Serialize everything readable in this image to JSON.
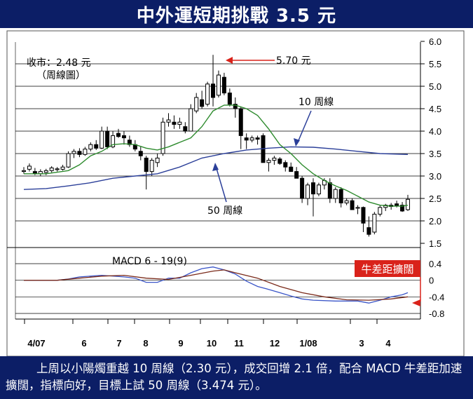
{
  "header": {
    "title": "中外運短期挑戰 3.5 元"
  },
  "chart_data": [
    {
      "type": "candlestick",
      "title": "",
      "annotations": {
        "close": "收市：2.48 元",
        "chart_kind": "（周線圖）",
        "peak": "5.70 元",
        "ma10": "10 周線",
        "ma50": "50 周線"
      },
      "x_ticks": [
        "4/07",
        "6",
        "7",
        "8",
        "9",
        "10",
        "11",
        "12",
        "1/08",
        "3",
        "4"
      ],
      "y_ticks": [
        "6.0",
        "5.5",
        "5.0",
        "4.5",
        "4.0",
        "3.5",
        "3.0",
        "2.5",
        "2.0",
        "1.5"
      ],
      "ylim": [
        1.5,
        6.0
      ],
      "ohlc": [
        [
          3.1,
          3.2,
          3.05,
          3.12
        ],
        [
          3.15,
          3.28,
          3.1,
          3.22
        ],
        [
          3.1,
          3.18,
          3.02,
          3.06
        ],
        [
          3.05,
          3.15,
          3.0,
          3.1
        ],
        [
          3.08,
          3.16,
          3.02,
          3.12
        ],
        [
          3.12,
          3.22,
          3.08,
          3.18
        ],
        [
          3.15,
          3.2,
          3.1,
          3.16
        ],
        [
          3.15,
          3.25,
          3.12,
          3.2
        ],
        [
          3.2,
          3.55,
          3.18,
          3.5
        ],
        [
          3.5,
          3.6,
          3.4,
          3.55
        ],
        [
          3.55,
          3.62,
          3.42,
          3.48
        ],
        [
          3.48,
          3.65,
          3.45,
          3.6
        ],
        [
          3.6,
          3.75,
          3.55,
          3.7
        ],
        [
          3.7,
          3.8,
          3.58,
          3.62
        ],
        [
          3.62,
          4.1,
          3.6,
          4.0
        ],
        [
          4.0,
          4.1,
          3.6,
          3.65
        ],
        [
          3.65,
          4.0,
          3.62,
          3.9
        ],
        [
          3.95,
          4.05,
          3.85,
          3.88
        ],
        [
          3.9,
          4.0,
          3.7,
          3.85
        ],
        [
          3.8,
          3.9,
          3.65,
          3.7
        ],
        [
          3.7,
          3.8,
          3.55,
          3.6
        ],
        [
          3.55,
          3.65,
          3.35,
          3.45
        ],
        [
          3.4,
          3.45,
          2.7,
          3.1
        ],
        [
          3.1,
          3.4,
          3.0,
          3.35
        ],
        [
          3.3,
          3.5,
          3.2,
          3.4
        ],
        [
          3.5,
          4.3,
          3.45,
          4.2
        ],
        [
          4.2,
          4.4,
          4.1,
          4.25
        ],
        [
          4.2,
          4.35,
          4.05,
          4.15
        ],
        [
          4.15,
          4.3,
          4.05,
          4.2
        ],
        [
          4.1,
          4.2,
          3.95,
          4.0
        ],
        [
          4.0,
          4.6,
          4.0,
          4.5
        ],
        [
          4.45,
          4.85,
          4.4,
          4.75
        ],
        [
          4.7,
          4.9,
          4.5,
          4.55
        ],
        [
          4.6,
          5.1,
          4.55,
          5.05
        ],
        [
          5.05,
          5.7,
          4.55,
          4.75
        ],
        [
          4.8,
          5.35,
          4.75,
          5.25
        ],
        [
          5.2,
          5.3,
          4.8,
          4.85
        ],
        [
          4.85,
          4.95,
          4.55,
          4.6
        ],
        [
          4.6,
          4.75,
          4.3,
          4.5
        ],
        [
          4.5,
          4.55,
          3.6,
          3.9
        ],
        [
          3.85,
          3.95,
          3.6,
          3.8
        ],
        [
          3.8,
          3.9,
          3.75,
          3.85
        ],
        [
          3.85,
          3.9,
          3.7,
          3.82
        ],
        [
          3.9,
          3.95,
          3.3,
          3.3
        ],
        [
          3.3,
          3.4,
          3.1,
          3.35
        ],
        [
          3.35,
          3.45,
          3.25,
          3.4
        ],
        [
          3.38,
          3.42,
          3.25,
          3.28
        ],
        [
          3.3,
          3.35,
          3.1,
          3.2
        ],
        [
          3.2,
          3.3,
          3.1,
          3.1
        ],
        [
          3.1,
          3.2,
          2.95,
          2.95
        ],
        [
          2.95,
          3.0,
          2.4,
          2.5
        ],
        [
          2.5,
          2.85,
          2.35,
          2.8
        ],
        [
          2.85,
          2.95,
          2.1,
          2.6
        ],
        [
          2.6,
          2.85,
          2.55,
          2.8
        ],
        [
          2.8,
          2.95,
          2.7,
          2.9
        ],
        [
          2.85,
          2.95,
          2.4,
          2.5
        ],
        [
          2.5,
          2.75,
          2.4,
          2.7
        ],
        [
          2.7,
          2.75,
          2.3,
          2.4
        ],
        [
          2.4,
          2.5,
          2.35,
          2.45
        ],
        [
          2.45,
          2.5,
          2.25,
          2.25
        ],
        [
          2.3,
          2.35,
          2.15,
          2.3
        ],
        [
          2.3,
          2.32,
          1.75,
          1.95
        ],
        [
          1.85,
          2.1,
          1.65,
          1.7
        ],
        [
          1.75,
          2.2,
          1.7,
          2.15
        ],
        [
          2.15,
          2.35,
          2.1,
          2.3
        ],
        [
          2.3,
          2.38,
          2.22,
          2.35
        ],
        [
          2.35,
          2.4,
          2.25,
          2.32
        ],
        [
          2.38,
          2.45,
          2.3,
          2.33
        ],
        [
          2.35,
          2.42,
          2.2,
          2.22
        ],
        [
          2.25,
          2.58,
          2.22,
          2.48
        ]
      ],
      "ma10": [
        [
          0,
          3.05
        ],
        [
          4,
          3.05
        ],
        [
          8,
          3.12
        ],
        [
          10,
          3.25
        ],
        [
          12,
          3.45
        ],
        [
          14,
          3.55
        ],
        [
          16,
          3.7
        ],
        [
          18,
          3.72
        ],
        [
          20,
          3.7
        ],
        [
          22,
          3.62
        ],
        [
          24,
          3.58
        ],
        [
          26,
          3.65
        ],
        [
          28,
          3.75
        ],
        [
          30,
          3.85
        ],
        [
          32,
          4.1
        ],
        [
          34,
          4.45
        ],
        [
          36,
          4.58
        ],
        [
          38,
          4.58
        ],
        [
          40,
          4.5
        ],
        [
          42,
          4.35
        ],
        [
          44,
          4.05
        ],
        [
          46,
          3.7
        ],
        [
          48,
          3.5
        ],
        [
          50,
          3.25
        ],
        [
          52,
          3.05
        ],
        [
          54,
          2.9
        ],
        [
          56,
          2.78
        ],
        [
          58,
          2.68
        ],
        [
          60,
          2.55
        ],
        [
          62,
          2.42
        ],
        [
          64,
          2.35
        ],
        [
          66,
          2.33
        ],
        [
          68,
          2.33
        ],
        [
          69,
          2.35
        ]
      ],
      "ma50": [
        [
          0,
          2.7
        ],
        [
          4,
          2.72
        ],
        [
          8,
          2.78
        ],
        [
          12,
          2.85
        ],
        [
          16,
          2.95
        ],
        [
          20,
          3.0
        ],
        [
          24,
          3.05
        ],
        [
          28,
          3.2
        ],
        [
          32,
          3.4
        ],
        [
          36,
          3.5
        ],
        [
          40,
          3.58
        ],
        [
          44,
          3.62
        ],
        [
          48,
          3.65
        ],
        [
          52,
          3.64
        ],
        [
          56,
          3.6
        ],
        [
          60,
          3.55
        ],
        [
          64,
          3.5
        ],
        [
          69,
          3.48
        ]
      ]
    },
    {
      "type": "line",
      "title": "MACD 6 - 19(9)",
      "y_ticks": [
        "0.4",
        "0",
        "-0.4",
        "-0.8"
      ],
      "ylim": [
        -0.8,
        0.4
      ],
      "annotation": "牛差距擴闊",
      "series": [
        {
          "color": "#3a55c8",
          "points": [
            [
              0,
              0.0
            ],
            [
              6,
              0.0
            ],
            [
              8,
              0.03
            ],
            [
              10,
              0.08
            ],
            [
              14,
              0.12
            ],
            [
              18,
              0.08
            ],
            [
              20,
              0.05
            ],
            [
              22,
              -0.05
            ],
            [
              24,
              -0.05
            ],
            [
              26,
              0.05
            ],
            [
              28,
              0.05
            ],
            [
              30,
              0.18
            ],
            [
              32,
              0.28
            ],
            [
              34,
              0.32
            ],
            [
              36,
              0.25
            ],
            [
              38,
              0.15
            ],
            [
              40,
              -0.02
            ],
            [
              42,
              -0.15
            ],
            [
              44,
              -0.22
            ],
            [
              46,
              -0.3
            ],
            [
              48,
              -0.38
            ],
            [
              50,
              -0.45
            ],
            [
              52,
              -0.48
            ],
            [
              56,
              -0.5
            ],
            [
              60,
              -0.5
            ],
            [
              62,
              -0.55
            ],
            [
              64,
              -0.48
            ],
            [
              66,
              -0.4
            ],
            [
              68,
              -0.35
            ],
            [
              69,
              -0.3
            ]
          ]
        },
        {
          "color": "#7a2a1a",
          "points": [
            [
              0,
              0.0
            ],
            [
              6,
              0.0
            ],
            [
              10,
              0.05
            ],
            [
              14,
              0.1
            ],
            [
              18,
              0.12
            ],
            [
              22,
              0.05
            ],
            [
              26,
              0.02
            ],
            [
              30,
              0.12
            ],
            [
              34,
              0.22
            ],
            [
              36,
              0.25
            ],
            [
              38,
              0.18
            ],
            [
              42,
              0.05
            ],
            [
              46,
              -0.15
            ],
            [
              50,
              -0.3
            ],
            [
              54,
              -0.4
            ],
            [
              58,
              -0.47
            ],
            [
              62,
              -0.48
            ],
            [
              66,
              -0.45
            ],
            [
              69,
              -0.4
            ]
          ]
        }
      ]
    }
  ],
  "footer": {
    "text": "上周以小陽燭重越 10 周線（2.30 元），成交回增 2.1 倍，配合 MACD 牛差距加速擴闊，指標向好，目標上試 50 周線（3.474 元）。"
  }
}
